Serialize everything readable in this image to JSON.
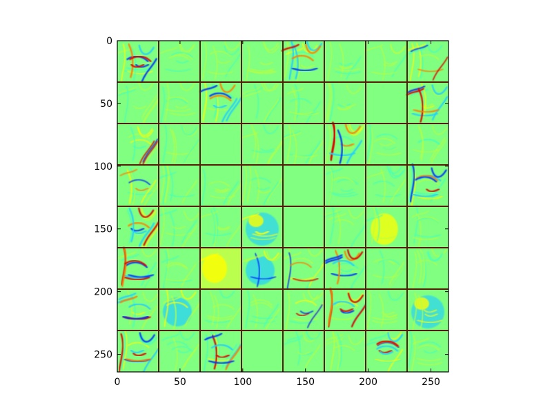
{
  "chart_data": {
    "type": "heatmap",
    "title": "",
    "xlabel": "",
    "ylabel": "",
    "xlim": [
      0,
      264
    ],
    "ylim": [
      264,
      0
    ],
    "grid_rows": 8,
    "grid_cols": 8,
    "tile_size_data": 33,
    "x_ticks": [
      0,
      50,
      100,
      150,
      200,
      250
    ],
    "y_ticks": [
      0,
      50,
      100,
      150,
      200,
      250
    ],
    "x_tick_labels": [
      "0",
      "50",
      "100",
      "150",
      "200",
      "250"
    ],
    "y_tick_labels": [
      "0",
      "50",
      "100",
      "150",
      "200",
      "250"
    ],
    "colormap": "jet",
    "separator_color": "#5a1a0a",
    "tiles": [
      [
        "edges-strong",
        "edges-faint",
        "edges-faint",
        "edges-faint",
        "edges-strong",
        "edges-faint",
        "edges-faint",
        "edges-medium"
      ],
      [
        "edges-faint",
        "edges-faint",
        "edges-strong",
        "edges-faint",
        "edges-faint",
        "edges-faint",
        "flat",
        "edges-strong"
      ],
      [
        "edges-medium",
        "edges-faint",
        "flat",
        "edges-faint",
        "edges-faint",
        "edges-strong",
        "edges-faint",
        "edges-faint"
      ],
      [
        "edges-medium",
        "edges-faint",
        "edges-faint",
        "edges-faint",
        "flat",
        "edges-faint",
        "edges-faint",
        "edges-strong"
      ],
      [
        "edges-strong",
        "edges-faint",
        "edges-faint",
        "blob-cyan-yellow",
        "flat",
        "edges-faint",
        "blob-yellow",
        "edges-faint"
      ],
      [
        "edges-strong",
        "edges-faint",
        "blob-yellow-bright",
        "blob-cyan",
        "edges-medium",
        "edges-strong",
        "edges-faint",
        "edges-faint"
      ],
      [
        "edges-strong",
        "blob-cyan",
        "edges-faint",
        "edges-faint",
        "edges-medium",
        "edges-strong",
        "edges-faint",
        "blob-cyan-yellow"
      ],
      [
        "edges-strong",
        "edges-faint",
        "edges-strong",
        "flat",
        "edges-faint",
        "edges-faint",
        "edges-strong",
        "edges-faint"
      ]
    ],
    "colors": {
      "base": "#80ff80",
      "faint": "#b8ff40",
      "yellow": "#ffff00",
      "cyan": "#20d0ff",
      "blue": "#0030ff",
      "red": "#e00000",
      "orange": "#ff8000",
      "teal": "#40ffc0"
    }
  }
}
